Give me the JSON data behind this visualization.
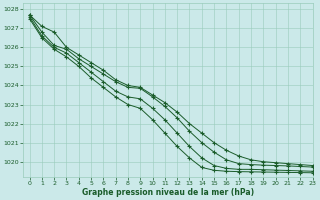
{
  "title": "Graphe pression niveau de la mer (hPa)",
  "background_color": "#cbe9e9",
  "grid_color": "#99ccbb",
  "line_color": "#1a5c2a",
  "text_color": "#1a5c2a",
  "xlim": [
    -0.5,
    23
  ],
  "ylim": [
    1019.2,
    1028.3
  ],
  "yticks": [
    1020,
    1021,
    1022,
    1023,
    1024,
    1025,
    1026,
    1027,
    1028
  ],
  "xticks": [
    0,
    1,
    2,
    3,
    4,
    5,
    6,
    7,
    8,
    9,
    10,
    11,
    12,
    13,
    14,
    15,
    16,
    17,
    18,
    19,
    20,
    21,
    22,
    23
  ],
  "series": [
    [
      1027.7,
      1027.1,
      1026.8,
      1026.0,
      1025.6,
      1025.2,
      1024.8,
      1024.3,
      1024.0,
      1023.9,
      1023.5,
      1023.1,
      1022.6,
      1022.0,
      1021.5,
      1021.0,
      1020.6,
      1020.3,
      1020.1,
      1020.0,
      1019.95,
      1019.9,
      1019.85,
      1019.8
    ],
    [
      1027.7,
      1026.8,
      1026.1,
      1025.9,
      1025.4,
      1025.0,
      1024.6,
      1024.2,
      1023.9,
      1023.85,
      1023.4,
      1022.9,
      1022.3,
      1021.6,
      1021.0,
      1020.5,
      1020.1,
      1019.9,
      1019.85,
      1019.82,
      1019.8,
      1019.78,
      1019.75,
      1019.72
    ],
    [
      1027.6,
      1026.6,
      1026.0,
      1025.7,
      1025.2,
      1024.7,
      1024.2,
      1023.7,
      1023.4,
      1023.3,
      1022.8,
      1022.2,
      1021.5,
      1020.8,
      1020.2,
      1019.8,
      1019.65,
      1019.6,
      1019.6,
      1019.58,
      1019.56,
      1019.54,
      1019.52,
      1019.5
    ],
    [
      1027.5,
      1026.5,
      1025.9,
      1025.5,
      1025.0,
      1024.4,
      1023.9,
      1023.4,
      1023.0,
      1022.8,
      1022.2,
      1021.5,
      1020.8,
      1020.2,
      1019.7,
      1019.55,
      1019.5,
      1019.48,
      1019.47,
      1019.46,
      1019.45,
      1019.44,
      1019.43,
      1019.42
    ]
  ]
}
